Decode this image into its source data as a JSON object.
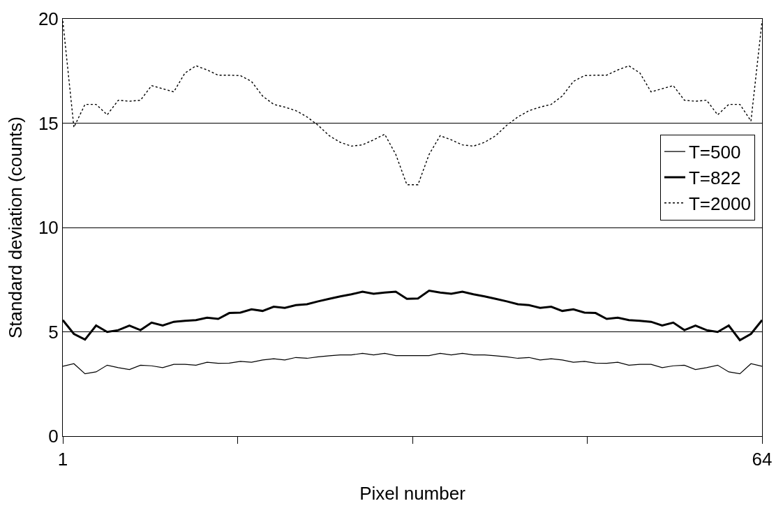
{
  "chart_data": {
    "type": "line",
    "xlabel": "Pixel number",
    "ylabel": "Standard deviation (counts)",
    "x": [
      1,
      2,
      3,
      4,
      5,
      6,
      7,
      8,
      9,
      10,
      11,
      12,
      13,
      14,
      15,
      16,
      17,
      18,
      19,
      20,
      21,
      22,
      23,
      24,
      25,
      26,
      27,
      28,
      29,
      30,
      31,
      32,
      33,
      34,
      35,
      36,
      37,
      38,
      39,
      40,
      41,
      42,
      43,
      44,
      45,
      46,
      47,
      48,
      49,
      50,
      51,
      52,
      53,
      54,
      55,
      56,
      57,
      58,
      59,
      60,
      61,
      62,
      63,
      64
    ],
    "series": [
      {
        "name": "T=500",
        "color": "#000000",
        "line_style": "solid",
        "values": [
          3.35,
          3.47,
          2.99,
          3.08,
          3.4,
          3.28,
          3.19,
          3.4,
          3.37,
          3.28,
          3.44,
          3.44,
          3.4,
          3.54,
          3.49,
          3.5,
          3.58,
          3.54,
          3.65,
          3.71,
          3.65,
          3.77,
          3.73,
          3.8,
          3.85,
          3.89,
          3.89,
          3.97,
          3.89,
          3.97,
          3.86,
          3.86,
          3.86,
          3.86,
          3.97,
          3.89,
          3.97,
          3.89,
          3.89,
          3.85,
          3.8,
          3.73,
          3.77,
          3.65,
          3.71,
          3.65,
          3.54,
          3.58,
          3.5,
          3.49,
          3.54,
          3.4,
          3.44,
          3.44,
          3.28,
          3.37,
          3.4,
          3.19,
          3.28,
          3.4,
          3.08,
          2.99,
          3.47,
          3.35
        ]
      },
      {
        "name": "T=822",
        "color": "#000000",
        "line_style": "solid",
        "values": [
          5.56,
          4.9,
          4.63,
          5.3,
          4.99,
          5.08,
          5.3,
          5.08,
          5.44,
          5.3,
          5.48,
          5.53,
          5.56,
          5.68,
          5.62,
          5.9,
          5.92,
          6.08,
          6.0,
          6.2,
          6.15,
          6.28,
          6.32,
          6.46,
          6.58,
          6.7,
          6.8,
          6.92,
          6.82,
          6.88,
          6.92,
          6.58,
          6.6,
          6.97,
          6.88,
          6.82,
          6.92,
          6.8,
          6.7,
          6.58,
          6.46,
          6.32,
          6.28,
          6.15,
          6.2,
          6.0,
          6.08,
          5.92,
          5.9,
          5.62,
          5.68,
          5.56,
          5.53,
          5.48,
          5.3,
          5.44,
          5.08,
          5.3,
          5.08,
          4.99,
          5.3,
          4.6,
          4.9,
          5.56
        ]
      },
      {
        "name": "T=2000",
        "color": "#000000",
        "line_style": "dotted",
        "values": [
          19.9,
          14.8,
          15.9,
          15.9,
          15.4,
          16.1,
          16.05,
          16.1,
          16.8,
          16.65,
          16.5,
          17.4,
          17.75,
          17.55,
          17.3,
          17.3,
          17.28,
          17.0,
          16.3,
          15.9,
          15.77,
          15.6,
          15.3,
          14.9,
          14.4,
          14.08,
          13.9,
          13.96,
          14.2,
          14.47,
          13.5,
          12.05,
          12.05,
          13.5,
          14.4,
          14.2,
          13.96,
          13.9,
          14.08,
          14.4,
          14.9,
          15.3,
          15.6,
          15.77,
          15.9,
          16.3,
          17.0,
          17.28,
          17.3,
          17.3,
          17.55,
          17.75,
          17.4,
          16.5,
          16.65,
          16.8,
          16.1,
          16.05,
          16.1,
          15.4,
          15.9,
          15.9,
          15.1,
          19.9
        ]
      }
    ],
    "xlim": [
      1,
      64
    ],
    "xticks": [
      {
        "value": 1,
        "label": "1"
      },
      {
        "value": 16.75,
        "label": null
      },
      {
        "value": 32.5,
        "label": null
      },
      {
        "value": 48.25,
        "label": null
      },
      {
        "value": 64,
        "label": "64"
      }
    ],
    "ylim": [
      0,
      20
    ],
    "yticks": [
      0,
      5,
      10,
      15,
      20
    ],
    "grid": "y",
    "legend": "right",
    "marker": "none"
  }
}
